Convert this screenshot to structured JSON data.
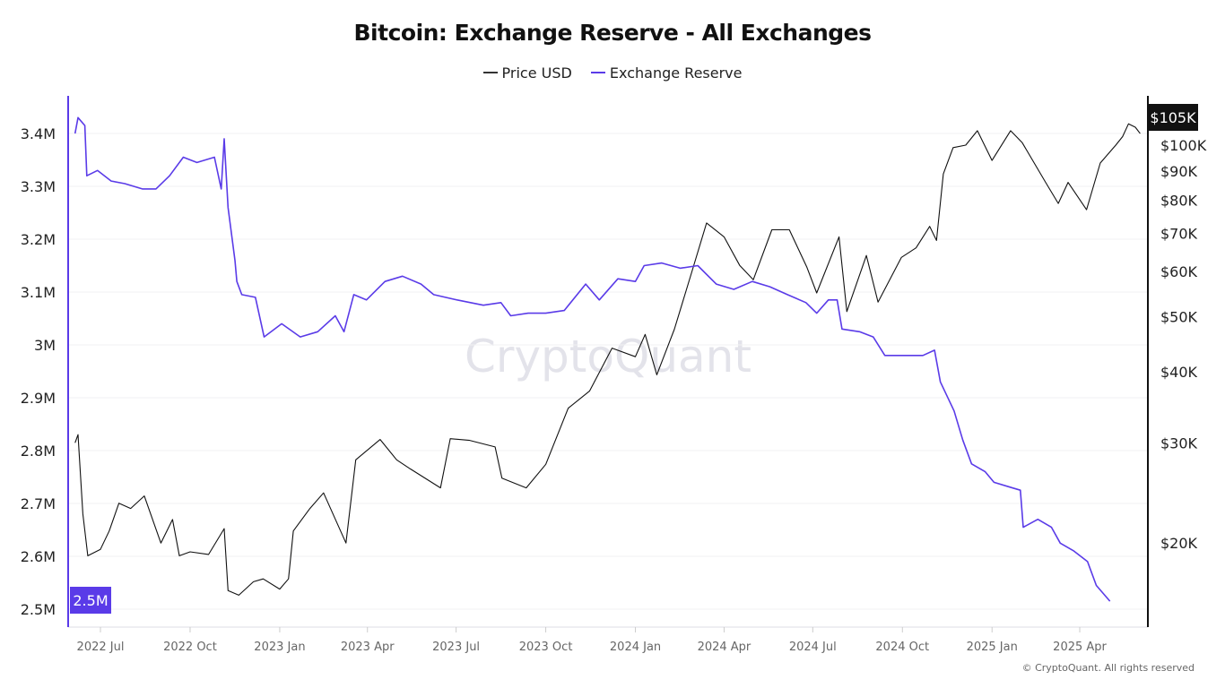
{
  "chart_data": {
    "type": "line",
    "title": "Bitcoin: Exchange Reserve - All Exchanges",
    "legend_position": "top",
    "grid": true,
    "watermark": "CryptoQuant",
    "footer": "© CryptoQuant. All rights reserved",
    "x_ticks": [
      {
        "date": "2022-07-01",
        "label": "2022 Jul"
      },
      {
        "date": "2022-10-01",
        "label": "2022 Oct"
      },
      {
        "date": "2023-01-01",
        "label": "2023 Jan"
      },
      {
        "date": "2023-04-01",
        "label": "2023 Apr"
      },
      {
        "date": "2023-07-01",
        "label": "2023 Jul"
      },
      {
        "date": "2023-10-01",
        "label": "2023 Oct"
      },
      {
        "date": "2024-01-01",
        "label": "2024 Jan"
      },
      {
        "date": "2024-04-01",
        "label": "2024 Apr"
      },
      {
        "date": "2024-07-01",
        "label": "2024 Jul"
      },
      {
        "date": "2024-10-01",
        "label": "2024 Oct"
      },
      {
        "date": "2025-01-01",
        "label": "2025 Jan"
      },
      {
        "date": "2025-04-01",
        "label": "2025 Apr"
      }
    ],
    "x_range": [
      "2022-05-27",
      "2025-06-10"
    ],
    "left_axis": {
      "ylim": [
        2.5,
        3.4
      ],
      "unit": "M",
      "ticks": [
        {
          "v": 3.4,
          "label": "3.4M"
        },
        {
          "v": 3.3,
          "label": "3.3M"
        },
        {
          "v": 3.2,
          "label": "3.2M"
        },
        {
          "v": 3.1,
          "label": "3.1M"
        },
        {
          "v": 3.0,
          "label": "3M"
        },
        {
          "v": 2.9,
          "label": "2.9M"
        },
        {
          "v": 2.8,
          "label": "2.8M"
        },
        {
          "v": 2.7,
          "label": "2.7M"
        },
        {
          "v": 2.6,
          "label": "2.6M"
        },
        {
          "v": 2.5,
          "label": "2.5M"
        }
      ],
      "current_label": "2.5M",
      "color": "#5a3be8"
    },
    "right_axis": {
      "scale": "log",
      "ticks": [
        {
          "v": 100000,
          "label": "$100K"
        },
        {
          "v": 90000,
          "label": "$90K"
        },
        {
          "v": 80000,
          "label": "$80K"
        },
        {
          "v": 70000,
          "label": "$70K"
        },
        {
          "v": 60000,
          "label": "$60K"
        },
        {
          "v": 50000,
          "label": "$50K"
        },
        {
          "v": 40000,
          "label": "$40K"
        },
        {
          "v": 30000,
          "label": "$30K"
        },
        {
          "v": 20000,
          "label": "$20K"
        }
      ],
      "current_label": "$105K",
      "color": "#111111"
    },
    "series": [
      {
        "name": "Price USD",
        "axis": "right",
        "color": "#111111",
        "points": [
          [
            "2022-06-05",
            30000
          ],
          [
            "2022-06-08",
            31000
          ],
          [
            "2022-06-13",
            22500
          ],
          [
            "2022-06-18",
            19000
          ],
          [
            "2022-07-01",
            19500
          ],
          [
            "2022-07-10",
            21000
          ],
          [
            "2022-07-20",
            23500
          ],
          [
            "2022-08-01",
            23000
          ],
          [
            "2022-08-15",
            24200
          ],
          [
            "2022-09-01",
            20000
          ],
          [
            "2022-09-13",
            22000
          ],
          [
            "2022-09-20",
            19000
          ],
          [
            "2022-10-01",
            19300
          ],
          [
            "2022-10-20",
            19100
          ],
          [
            "2022-11-05",
            21200
          ],
          [
            "2022-11-09",
            16500
          ],
          [
            "2022-11-20",
            16200
          ],
          [
            "2022-12-05",
            17100
          ],
          [
            "2022-12-15",
            17300
          ],
          [
            "2023-01-01",
            16600
          ],
          [
            "2023-01-10",
            17300
          ],
          [
            "2023-01-15",
            21000
          ],
          [
            "2023-02-01",
            23000
          ],
          [
            "2023-02-15",
            24500
          ],
          [
            "2023-03-10",
            20000
          ],
          [
            "2023-03-20",
            28000
          ],
          [
            "2023-04-14",
            30400
          ],
          [
            "2023-05-01",
            28000
          ],
          [
            "2023-05-15",
            27000
          ],
          [
            "2023-06-15",
            25000
          ],
          [
            "2023-06-25",
            30500
          ],
          [
            "2023-07-15",
            30300
          ],
          [
            "2023-08-10",
            29500
          ],
          [
            "2023-08-17",
            26000
          ],
          [
            "2023-09-11",
            25000
          ],
          [
            "2023-10-01",
            27500
          ],
          [
            "2023-10-24",
            34500
          ],
          [
            "2023-11-15",
            37000
          ],
          [
            "2023-12-08",
            44000
          ],
          [
            "2024-01-01",
            42500
          ],
          [
            "2024-01-11",
            46500
          ],
          [
            "2024-01-23",
            39500
          ],
          [
            "2024-02-10",
            47500
          ],
          [
            "2024-02-28",
            60000
          ],
          [
            "2024-03-14",
            73000
          ],
          [
            "2024-04-01",
            69000
          ],
          [
            "2024-04-17",
            61500
          ],
          [
            "2024-05-01",
            58000
          ],
          [
            "2024-05-20",
            71000
          ],
          [
            "2024-06-07",
            71000
          ],
          [
            "2024-06-25",
            61000
          ],
          [
            "2024-07-05",
            55000
          ],
          [
            "2024-07-28",
            69000
          ],
          [
            "2024-08-05",
            51000
          ],
          [
            "2024-08-25",
            64000
          ],
          [
            "2024-09-06",
            53000
          ],
          [
            "2024-09-30",
            63500
          ],
          [
            "2024-10-15",
            66000
          ],
          [
            "2024-10-29",
            72000
          ],
          [
            "2024-11-05",
            68000
          ],
          [
            "2024-11-12",
            89000
          ],
          [
            "2024-11-22",
            99000
          ],
          [
            "2024-12-05",
            100000
          ],
          [
            "2024-12-17",
            106000
          ],
          [
            "2025-01-01",
            94000
          ],
          [
            "2025-01-20",
            106000
          ],
          [
            "2025-02-01",
            101000
          ],
          [
            "2025-02-25",
            86000
          ],
          [
            "2025-03-10",
            79000
          ],
          [
            "2025-03-20",
            86000
          ],
          [
            "2025-04-08",
            77000
          ],
          [
            "2025-04-22",
            93000
          ],
          [
            "2025-05-08",
            100000
          ],
          [
            "2025-05-15",
            103500
          ],
          [
            "2025-05-21",
            109000
          ],
          [
            "2025-05-28",
            107500
          ],
          [
            "2025-06-02",
            104800
          ]
        ]
      },
      {
        "name": "Exchange Reserve",
        "axis": "left",
        "color": "#5a3be8",
        "points": [
          [
            "2022-06-05",
            3.4
          ],
          [
            "2022-06-08",
            3.43
          ],
          [
            "2022-06-15",
            3.415
          ],
          [
            "2022-06-17",
            3.32
          ],
          [
            "2022-06-28",
            3.33
          ],
          [
            "2022-07-12",
            3.31
          ],
          [
            "2022-07-26",
            3.305
          ],
          [
            "2022-08-13",
            3.295
          ],
          [
            "2022-08-27",
            3.295
          ],
          [
            "2022-09-10",
            3.32
          ],
          [
            "2022-09-24",
            3.355
          ],
          [
            "2022-10-08",
            3.345
          ],
          [
            "2022-10-26",
            3.355
          ],
          [
            "2022-11-02",
            3.295
          ],
          [
            "2022-11-05",
            3.39
          ],
          [
            "2022-11-09",
            3.26
          ],
          [
            "2022-11-16",
            3.16
          ],
          [
            "2022-11-18",
            3.12
          ],
          [
            "2022-11-23",
            3.095
          ],
          [
            "2022-12-07",
            3.09
          ],
          [
            "2022-12-16",
            3.015
          ],
          [
            "2023-01-03",
            3.04
          ],
          [
            "2023-01-22",
            3.015
          ],
          [
            "2023-02-09",
            3.025
          ],
          [
            "2023-02-27",
            3.055
          ],
          [
            "2023-03-08",
            3.025
          ],
          [
            "2023-03-18",
            3.095
          ],
          [
            "2023-03-31",
            3.085
          ],
          [
            "2023-04-19",
            3.12
          ],
          [
            "2023-05-07",
            3.13
          ],
          [
            "2023-05-26",
            3.115
          ],
          [
            "2023-06-08",
            3.095
          ],
          [
            "2023-07-02",
            3.085
          ],
          [
            "2023-07-29",
            3.075
          ],
          [
            "2023-08-16",
            3.08
          ],
          [
            "2023-08-26",
            3.055
          ],
          [
            "2023-09-13",
            3.06
          ],
          [
            "2023-10-01",
            3.06
          ],
          [
            "2023-10-20",
            3.065
          ],
          [
            "2023-11-11",
            3.115
          ],
          [
            "2023-11-25",
            3.085
          ],
          [
            "2023-12-14",
            3.125
          ],
          [
            "2024-01-01",
            3.12
          ],
          [
            "2024-01-10",
            3.15
          ],
          [
            "2024-01-28",
            3.155
          ],
          [
            "2024-02-16",
            3.145
          ],
          [
            "2024-03-05",
            3.15
          ],
          [
            "2024-03-24",
            3.115
          ],
          [
            "2024-04-11",
            3.105
          ],
          [
            "2024-04-30",
            3.12
          ],
          [
            "2024-05-18",
            3.11
          ],
          [
            "2024-06-05",
            3.095
          ],
          [
            "2024-06-24",
            3.08
          ],
          [
            "2024-07-05",
            3.06
          ],
          [
            "2024-07-17",
            3.085
          ],
          [
            "2024-07-26",
            3.085
          ],
          [
            "2024-07-31",
            3.03
          ],
          [
            "2024-08-18",
            3.025
          ],
          [
            "2024-09-01",
            3.015
          ],
          [
            "2024-09-13",
            2.98
          ],
          [
            "2024-10-03",
            2.98
          ],
          [
            "2024-10-22",
            2.98
          ],
          [
            "2024-11-03",
            2.99
          ],
          [
            "2024-11-09",
            2.93
          ],
          [
            "2024-11-23",
            2.875
          ],
          [
            "2024-12-02",
            2.82
          ],
          [
            "2024-12-11",
            2.775
          ],
          [
            "2024-12-25",
            2.76
          ],
          [
            "2025-01-03",
            2.74
          ],
          [
            "2025-01-21",
            2.73
          ],
          [
            "2025-01-30",
            2.725
          ],
          [
            "2025-02-02",
            2.655
          ],
          [
            "2025-02-17",
            2.67
          ],
          [
            "2025-03-03",
            2.655
          ],
          [
            "2025-03-12",
            2.625
          ],
          [
            "2025-03-26",
            2.61
          ],
          [
            "2025-04-09",
            2.59
          ],
          [
            "2025-04-18",
            2.545
          ],
          [
            "2025-05-02",
            2.515
          ]
        ]
      }
    ]
  }
}
